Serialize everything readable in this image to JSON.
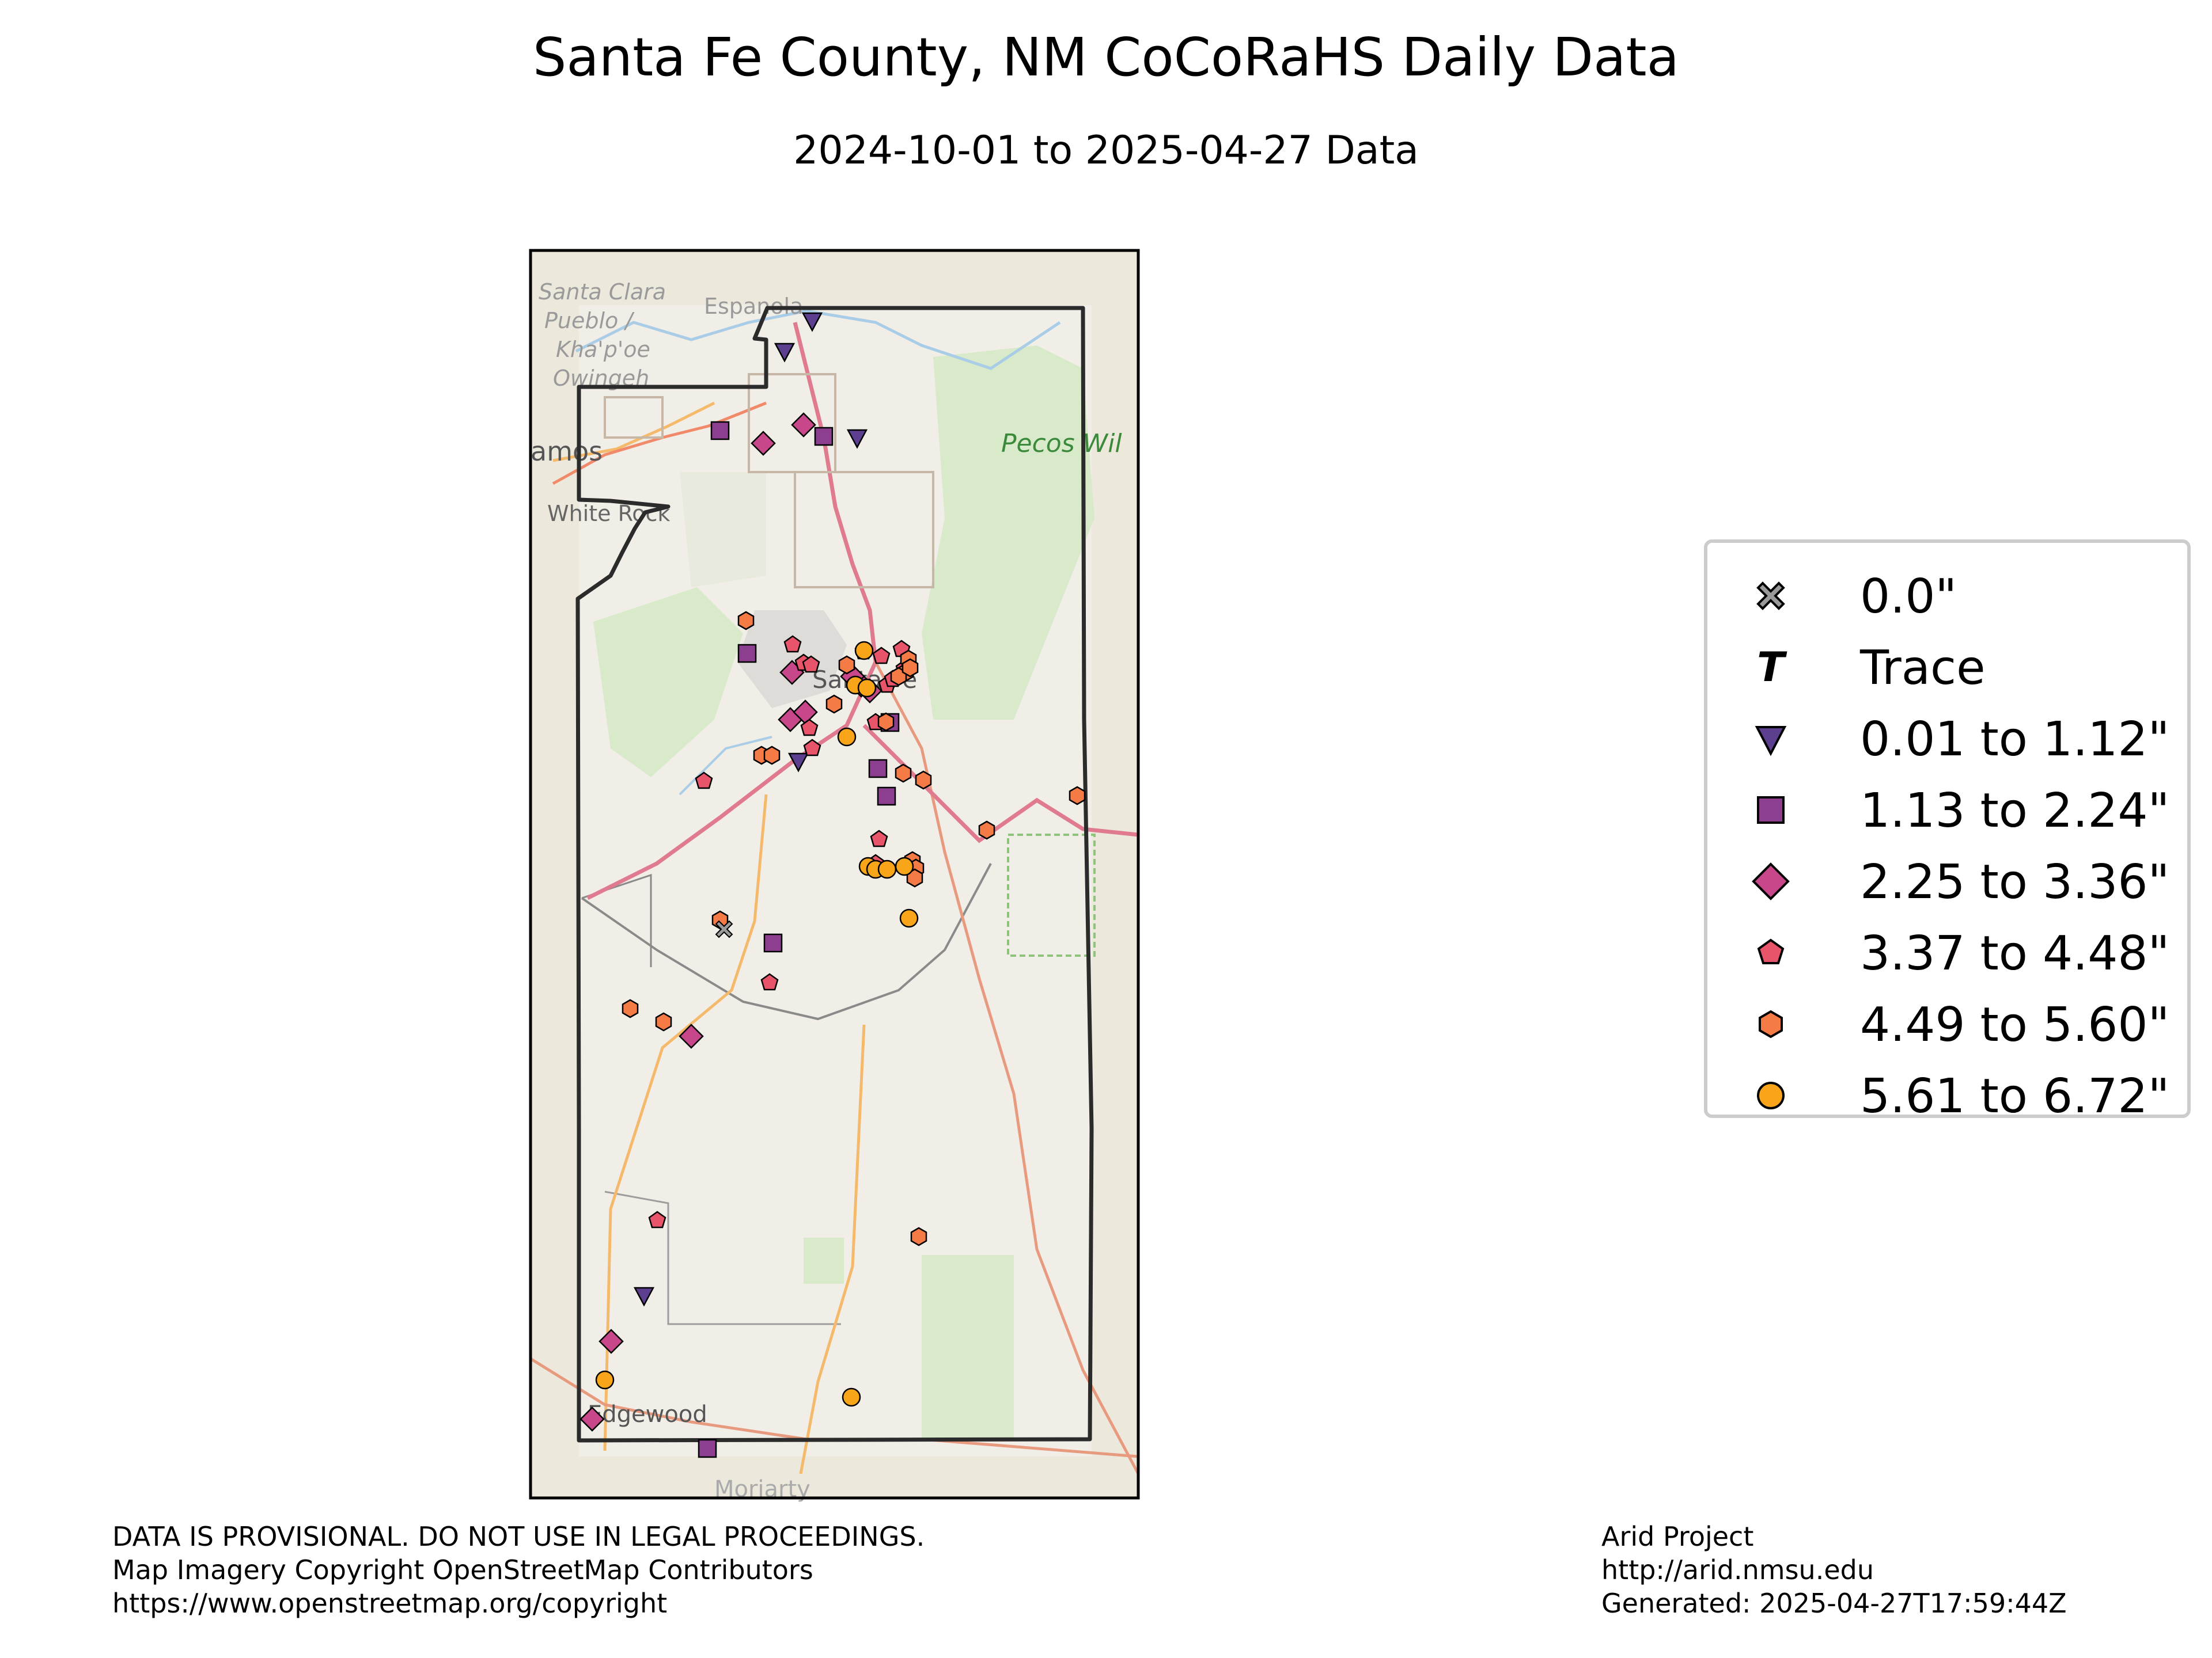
{
  "title": "Santa Fe County, NM CoCoRaHS Daily Data",
  "subtitle": "2024-10-01 to 2025-04-27 Data",
  "map": {
    "basemap_labels": [
      "Santa Clara",
      "Pueblo /",
      "Kha'p'oe",
      "Owingeh",
      "Espanola",
      "amos",
      "White Rock",
      "Pecos Wil",
      "Santa Fe",
      "Edgewood",
      "Moriarty"
    ],
    "colors": {
      "county_outline": "#2b2b2b",
      "basemap_background": "#f1eee8",
      "forest": "#d3e8c4",
      "highway": "#e07a8f",
      "road": "#f5b96b",
      "water": "#a9cde6"
    }
  },
  "legend": {
    "items": [
      {
        "label": "0.0\"",
        "marker": "x",
        "color": "#9a9a9a"
      },
      {
        "label": "Trace",
        "marker": "T",
        "color": "#000000"
      },
      {
        "label": "0.01 to 1.12\"",
        "marker": "triangle-down",
        "color": "#5c3f8f"
      },
      {
        "label": "1.13 to 2.24\"",
        "marker": "square",
        "color": "#8c3f8f"
      },
      {
        "label": "2.25 to 3.36\"",
        "marker": "diamond",
        "color": "#c8478a"
      },
      {
        "label": "3.37 to 4.48\"",
        "marker": "pentagon",
        "color": "#e8546a"
      },
      {
        "label": "4.49 to 5.60\"",
        "marker": "hexagon",
        "color": "#f47b45"
      },
      {
        "label": "5.61 to 6.72\"",
        "marker": "circle",
        "color": "#f9a51a"
      }
    ]
  },
  "footer_left": [
    "DATA IS PROVISIONAL. DO NOT USE IN LEGAL PROCEEDINGS.",
    "Map Imagery Copyright OpenStreetMap Contributors",
    "https://www.openstreetmap.org/copyright"
  ],
  "footer_right": [
    "Arid Project",
    "http://arid.nmsu.edu",
    "Generated: 2025-04-27T17:59:44Z"
  ]
}
